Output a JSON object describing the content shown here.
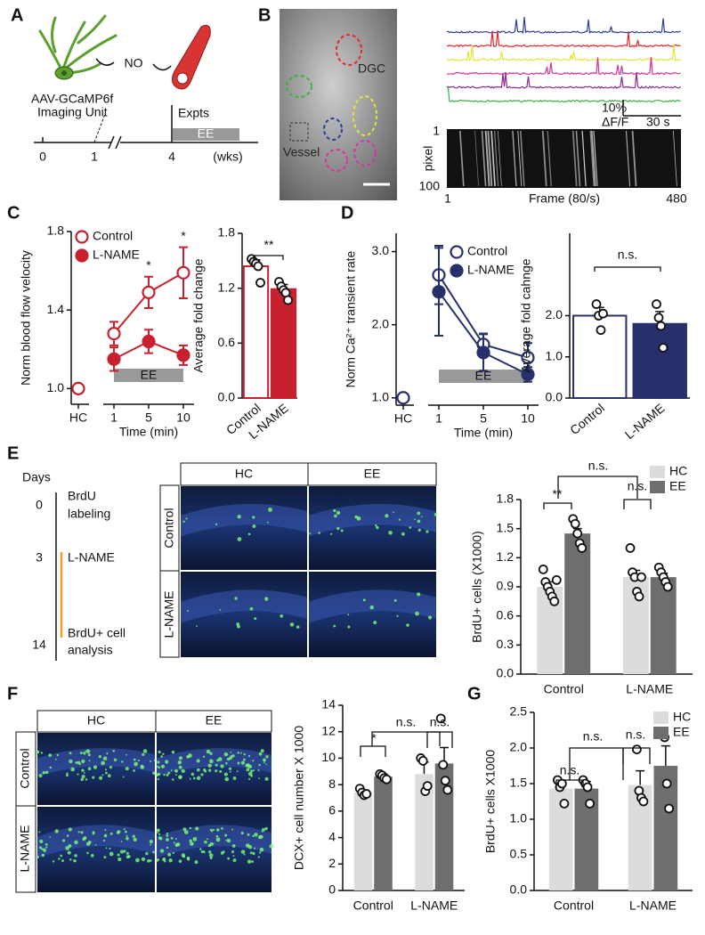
{
  "panel_labels": [
    "A",
    "B",
    "C",
    "D",
    "E",
    "F",
    "G"
  ],
  "panel_a": {
    "signal": "NO",
    "virus": "AAV-GCaMP6f",
    "unit": "Imaging Unit",
    "expts": "Expts",
    "ee": "EE",
    "weeks": [
      "0",
      "1",
      "4"
    ],
    "unit_label": "(wks)"
  },
  "panel_b": {
    "dgc": "DGC",
    "vessel": "Vessel",
    "scale_y": "10%",
    "scale_y_unit": "ΔF/F",
    "scale_x": "30 s",
    "trace_colors": [
      "#2a3d9c",
      "#e8262a",
      "#e4e43a",
      "#d6339c",
      "#8a2a8e",
      "#3cb042"
    ],
    "raster_y": [
      "1",
      "100"
    ],
    "raster_y_label": "pixel",
    "raster_x": [
      "1",
      "480"
    ],
    "raster_x_label": "Frame (80/s)"
  },
  "panel_e": {
    "days": "Days",
    "timeline": [
      {
        "day": "0",
        "lines": [
          "BrdU",
          "labeling"
        ]
      },
      {
        "day": "3",
        "lines": [
          "L-NAME"
        ]
      },
      {
        "day": "14",
        "lines": [
          "BrdU+ cell",
          "analysis"
        ]
      }
    ],
    "columns": [
      "HC",
      "EE"
    ],
    "rows": [
      "Control",
      "L-NAME"
    ]
  },
  "panel_f": {
    "columns": [
      "HC",
      "EE"
    ],
    "rows": [
      "Control",
      "L-NAME"
    ]
  },
  "chart_data": [
    {
      "type": "line",
      "ylabel": "Norm blood flow velocity",
      "xlabel": "Time (min)",
      "categories": [
        "HC",
        "1",
        "5",
        "10"
      ],
      "ylim": [
        0.92,
        1.8
      ],
      "yticks": [
        {
          "value": 1,
          "label": "1.0"
        },
        1.4,
        1.8
      ],
      "legend": "upper left",
      "series": [
        {
          "name": "Control",
          "color": "#c8202f",
          "filled": false,
          "values": [
            1.0,
            1.28,
            1.49,
            1.59
          ],
          "errors": [
            null,
            0.06,
            0.08,
            0.13
          ]
        },
        {
          "name": "L-NAME",
          "color": "#c8202f",
          "filled": true,
          "values": [
            null,
            1.15,
            1.24,
            1.17
          ],
          "errors": [
            null,
            0.06,
            0.06,
            0.05
          ]
        }
      ],
      "band": {
        "label": "EE",
        "from": 1,
        "to": 3
      },
      "annotations": [
        "*",
        "*"
      ]
    },
    {
      "type": "bar",
      "ylabel": "Average fold change",
      "categories": [
        "Control",
        "L-NAME"
      ],
      "values": [
        1.44,
        1.19
      ],
      "errors": [
        0.07,
        0.05
      ],
      "points": [
        [
          1.52,
          1.49,
          1.47,
          1.44,
          1.26
        ],
        [
          1.27,
          1.22,
          1.18,
          1.15,
          1.07
        ]
      ],
      "fills": [
        "#ffffff",
        "#c8202f"
      ],
      "color": "#c8202f",
      "ylim": [
        0,
        1.8
      ],
      "yticks": [
        {
          "value": 0,
          "label": "0.0"
        },
        0.6,
        1.2,
        1.8
      ],
      "annotations": [
        "**"
      ]
    },
    {
      "type": "line",
      "ylabel": "Norm Ca²⁺ transient rate",
      "xlabel": "Time (min)",
      "categories": [
        "HC",
        "1",
        "5",
        "10"
      ],
      "ylim": [
        0.9,
        3.25
      ],
      "yticks": [
        {
          "value": 1,
          "label": "1.0"
        },
        {
          "value": 2,
          "label": "2.0"
        },
        {
          "value": 3,
          "label": "3.0"
        }
      ],
      "legend": "upper right",
      "series": [
        {
          "name": "Control",
          "color": "#27306b",
          "filled": false,
          "values": [
            1.0,
            2.68,
            1.73,
            1.55
          ],
          "errors": [
            null,
            0.4,
            0.15,
            0.2
          ]
        },
        {
          "name": "L-NAME",
          "color": "#27306b",
          "filled": true,
          "values": [
            null,
            2.45,
            1.62,
            1.32
          ],
          "errors": [
            null,
            0.6,
            0.25,
            0.1
          ]
        }
      ],
      "band": {
        "label": "EE",
        "from": 1,
        "to": 3
      },
      "annotations": []
    },
    {
      "type": "bar",
      "ylabel": "Average fold cahnge",
      "categories": [
        "Control",
        "L-NAME"
      ],
      "values": [
        2.0,
        1.8
      ],
      "errors": [
        0.2,
        0.3
      ],
      "points": [
        [
          2.28,
          2.0,
          1.65,
          2.05
        ],
        [
          2.28,
          1.95,
          1.75,
          1.22
        ]
      ],
      "fills": [
        "#ffffff",
        "#27306b"
      ],
      "color": "#27306b",
      "ylim": [
        0,
        4
      ],
      "yticks": [
        {
          "value": 0,
          "label": "0.0"
        },
        {
          "value": 1,
          "label": "1.0"
        },
        {
          "value": 2,
          "label": "2.0"
        }
      ],
      "annotations": [
        "n.s."
      ]
    },
    {
      "type": "grouped_bar",
      "ylabel": "BrdU+ cells (X1000)",
      "categories": [
        "Control",
        "L-NAME"
      ],
      "legend": "upper right",
      "series": [
        {
          "name": "HC",
          "color": "#dcdcdc",
          "values": [
            0.9,
            1.0
          ],
          "errors": [
            0.05,
            0.07
          ],
          "points": [
            [
              1.08,
              0.95,
              0.9,
              0.85,
              0.8,
              0.75,
              0.97
            ],
            [
              1.3,
              1.05,
              1.0,
              0.85,
              0.8,
              1.0
            ]
          ]
        },
        {
          "name": "EE",
          "color": "#6e6e6e",
          "values": [
            1.45,
            1.0
          ],
          "errors": [
            0.05,
            0.04
          ],
          "points": [
            [
              1.6,
              1.55,
              1.45,
              1.35,
              1.3
            ],
            [
              1.1,
              1.05,
              1.0,
              0.95,
              0.9
            ]
          ]
        }
      ],
      "ylim": [
        0,
        1.8
      ],
      "yticks": [
        {
          "value": 0,
          "label": "0.0"
        },
        0.3,
        0.6,
        0.9,
        1.2,
        1.5,
        1.8
      ],
      "annotations": [
        "**",
        "n.s.",
        "n.s."
      ]
    },
    {
      "type": "grouped_bar",
      "ylabel": "DCX+ cell number X 1000",
      "categories": [
        "Control",
        "L-NAME"
      ],
      "series": [
        {
          "name": "HC",
          "color": "#dcdcdc",
          "values": [
            7.4,
            8.8
          ],
          "errors": [
            0.2,
            0.9
          ],
          "points": [
            [
              7.7,
              7.4,
              7.2,
              7.3
            ],
            [
              10.0,
              9.8,
              7.5,
              7.9
            ]
          ]
        },
        {
          "name": "EE",
          "color": "#6e6e6e",
          "values": [
            8.6,
            9.6
          ],
          "errors": [
            0.2,
            1.2
          ],
          "points": [
            [
              8.8,
              8.7,
              8.5,
              8.4
            ],
            [
              13.0,
              9.5,
              8.3,
              7.6
            ]
          ]
        }
      ],
      "ylim": [
        0,
        14
      ],
      "yticks": [
        0,
        2,
        4,
        6,
        8,
        10,
        12,
        14
      ],
      "annotations": [
        "*",
        "n.s.",
        "n.s."
      ]
    },
    {
      "type": "grouped_bar",
      "ylabel": "BrdU+ cells X1000",
      "categories": [
        "Control",
        "L-NAME"
      ],
      "legend": "upper right",
      "series": [
        {
          "name": "HC",
          "color": "#dcdcdc",
          "values": [
            1.43,
            1.48
          ],
          "errors": [
            0.1,
            0.2
          ],
          "points": [
            [
              1.55,
              1.45,
              1.5,
              1.22
            ],
            [
              1.98,
              1.4,
              1.3,
              1.25
            ]
          ]
        },
        {
          "name": "EE",
          "color": "#6e6e6e",
          "values": [
            1.43,
            1.75
          ],
          "errors": [
            0.1,
            0.28
          ],
          "points": [
            [
              1.55,
              1.5,
              1.45,
              1.22
            ],
            [
              2.2,
              2.15,
              1.5,
              1.15
            ]
          ]
        }
      ],
      "ylim": [
        0,
        2.5
      ],
      "yticks": [
        {
          "value": 0,
          "label": "0.0"
        },
        0.5,
        {
          "value": 1,
          "label": "1.0"
        },
        1.5,
        {
          "value": 2,
          "label": "2.0"
        },
        2.5
      ],
      "annotations": [
        "n.s.",
        "n.s.",
        "n.s."
      ]
    }
  ]
}
